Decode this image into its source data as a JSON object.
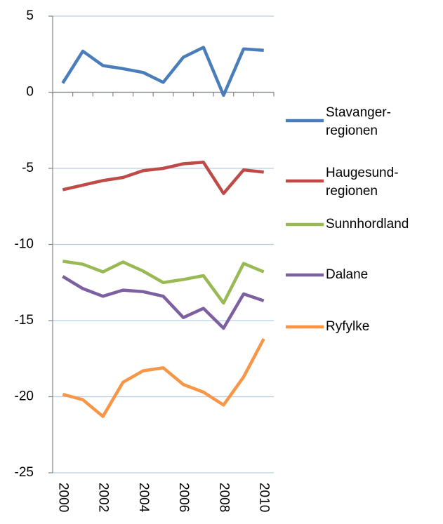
{
  "chart_data": {
    "type": "line",
    "categories": [
      2000,
      null,
      2002,
      null,
      2004,
      null,
      2006,
      null,
      2008,
      null,
      2010
    ],
    "series": [
      {
        "name": "Stavanger-regionen",
        "color": "#4a7ebb",
        "values": [
          0.6,
          2.7,
          1.75,
          1.55,
          1.3,
          0.65,
          2.3,
          2.95,
          -0.2,
          2.85,
          2.75
        ]
      },
      {
        "name": "Haugesund-regionen",
        "color": "#be4b48",
        "values": [
          -6.4,
          -6.1,
          -5.8,
          -5.6,
          -5.15,
          -5.0,
          -4.7,
          -4.6,
          -6.65,
          -5.1,
          -5.25
        ]
      },
      {
        "name": "Sunnhordland",
        "color": "#98b954",
        "values": [
          -11.1,
          -11.3,
          -11.8,
          -11.15,
          -11.75,
          -12.5,
          -12.3,
          -12.05,
          -13.85,
          -11.25,
          -11.8
        ]
      },
      {
        "name": "Dalane",
        "color": "#7d60a0",
        "values": [
          -12.1,
          -12.9,
          -13.4,
          -13.0,
          -13.1,
          -13.4,
          -14.8,
          -14.2,
          -15.5,
          -13.25,
          -13.7
        ]
      },
      {
        "name": "Ryfylke",
        "color": "#f79646",
        "values": [
          -19.85,
          -20.2,
          -21.3,
          -19.05,
          -18.3,
          -18.1,
          -19.2,
          -19.7,
          -20.55,
          -18.7,
          -16.2
        ]
      }
    ],
    "ylim": [
      -25,
      5
    ],
    "yticks": [
      -25,
      -20,
      -15,
      -10,
      -5,
      0,
      5
    ],
    "grid": true,
    "legend": "right"
  }
}
